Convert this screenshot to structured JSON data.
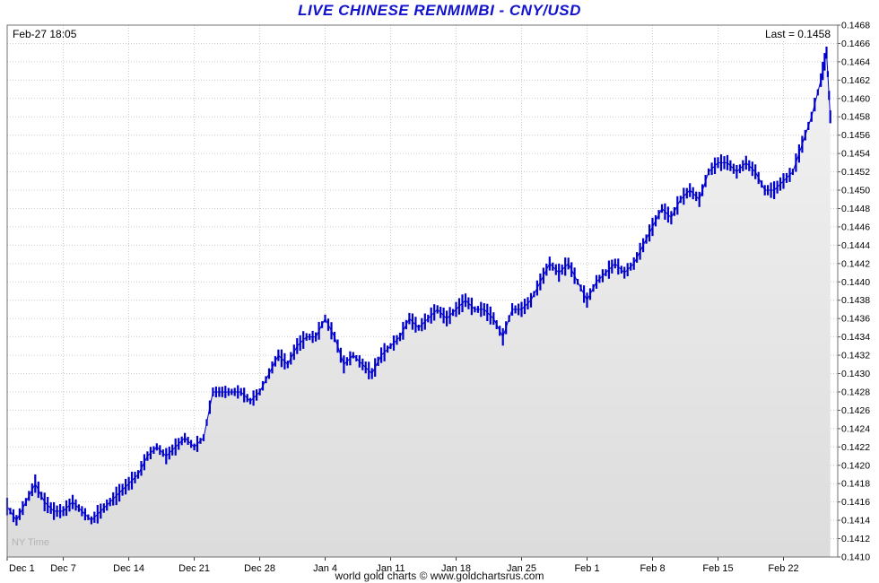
{
  "header": {
    "title": "LIVE CHINESE RENMIMBI - CNY/USD",
    "timestamp": "Feb-27 18:05",
    "last_label": "Last = 0.1458"
  },
  "watermark": "NY Time",
  "footer": "world gold charts © www.goldchartsrus.com",
  "chart_data": {
    "type": "line",
    "style": "intraday-tick-bars-with-area-fill",
    "title": "LIVE CHINESE RENMIMBI - CNY/USD",
    "last": 0.1458,
    "ylim": [
      0.141,
      0.1468
    ],
    "y_tick_step": 0.0002,
    "y_label_side": "right",
    "x_range": [
      0,
      88.8
    ],
    "grid": true,
    "line_color": "#0000cc",
    "grid_color": "#cccccc",
    "border_color": "#707070",
    "area_top_color": "#f2f2f2",
    "area_bottom_color": "#dcdcdc",
    "tick_noise": 7e-05,
    "bar_density": 3,
    "x_ticks": [
      {
        "label": "Dec 1",
        "x": 0
      },
      {
        "label": "Dec 7",
        "x": 6
      },
      {
        "label": "Dec 14",
        "x": 13
      },
      {
        "label": "Dec 21",
        "x": 20
      },
      {
        "label": "Dec 28",
        "x": 27
      },
      {
        "label": "Jan 4",
        "x": 34
      },
      {
        "label": "Jan 11",
        "x": 41
      },
      {
        "label": "Jan 18",
        "x": 48
      },
      {
        "label": "Jan 25",
        "x": 55
      },
      {
        "label": "Feb 1",
        "x": 62
      },
      {
        "label": "Feb 8",
        "x": 69
      },
      {
        "label": "Feb 15",
        "x": 76
      },
      {
        "label": "Feb 22",
        "x": 83
      }
    ],
    "points": [
      [
        0,
        0.14155
      ],
      [
        1,
        0.1414
      ],
      [
        2,
        0.1416
      ],
      [
        3,
        0.1418
      ],
      [
        4,
        0.1416
      ],
      [
        5,
        0.1415
      ],
      [
        6,
        0.1415
      ],
      [
        7,
        0.1416
      ],
      [
        8,
        0.1415
      ],
      [
        9,
        0.1414
      ],
      [
        10,
        0.1415
      ],
      [
        11,
        0.1416
      ],
      [
        12,
        0.1417
      ],
      [
        13,
        0.1418
      ],
      [
        14,
        0.1419
      ],
      [
        15,
        0.1421
      ],
      [
        16,
        0.1422
      ],
      [
        17,
        0.1421
      ],
      [
        18,
        0.1422
      ],
      [
        19,
        0.1423
      ],
      [
        20,
        0.1422
      ],
      [
        21,
        0.1423
      ],
      [
        22,
        0.1428
      ],
      [
        23,
        0.1428
      ],
      [
        24,
        0.1428
      ],
      [
        25,
        0.1428
      ],
      [
        26,
        0.1427
      ],
      [
        27,
        0.1428
      ],
      [
        28,
        0.143
      ],
      [
        29,
        0.1432
      ],
      [
        30,
        0.1431
      ],
      [
        31,
        0.1433
      ],
      [
        32,
        0.1434
      ],
      [
        33,
        0.1434
      ],
      [
        34,
        0.1436
      ],
      [
        35,
        0.1434
      ],
      [
        36,
        0.1431
      ],
      [
        37,
        0.1432
      ],
      [
        38,
        0.1431
      ],
      [
        39,
        0.143
      ],
      [
        40,
        0.1432
      ],
      [
        41,
        0.1433
      ],
      [
        42,
        0.1434
      ],
      [
        43,
        0.1436
      ],
      [
        44,
        0.1435
      ],
      [
        45,
        0.1436
      ],
      [
        46,
        0.1437
      ],
      [
        47,
        0.1436
      ],
      [
        48,
        0.1437
      ],
      [
        49,
        0.1438
      ],
      [
        50,
        0.1437
      ],
      [
        51,
        0.1437
      ],
      [
        52,
        0.1436
      ],
      [
        53,
        0.1434
      ],
      [
        54,
        0.1437
      ],
      [
        55,
        0.1437
      ],
      [
        56,
        0.1438
      ],
      [
        57,
        0.144
      ],
      [
        58,
        0.1442
      ],
      [
        59,
        0.1441
      ],
      [
        60,
        0.1442
      ],
      [
        61,
        0.144
      ],
      [
        62,
        0.1438
      ],
      [
        63,
        0.144
      ],
      [
        64,
        0.1441
      ],
      [
        65,
        0.1442
      ],
      [
        66,
        0.1441
      ],
      [
        67,
        0.1442
      ],
      [
        68,
        0.1444
      ],
      [
        69,
        0.1446
      ],
      [
        70,
        0.1448
      ],
      [
        71,
        0.1447
      ],
      [
        72,
        0.1449
      ],
      [
        73,
        0.145
      ],
      [
        74,
        0.1449
      ],
      [
        75,
        0.1452
      ],
      [
        76,
        0.1453
      ],
      [
        77,
        0.1453
      ],
      [
        78,
        0.1452
      ],
      [
        79,
        0.1453
      ],
      [
        80,
        0.1452
      ],
      [
        81,
        0.145
      ],
      [
        82,
        0.145
      ],
      [
        83,
        0.1451
      ],
      [
        84,
        0.1452
      ],
      [
        85,
        0.1455
      ],
      [
        86,
        0.1458
      ],
      [
        87,
        0.1462
      ],
      [
        87.6,
        0.1465
      ],
      [
        88,
        0.1458
      ]
    ]
  }
}
